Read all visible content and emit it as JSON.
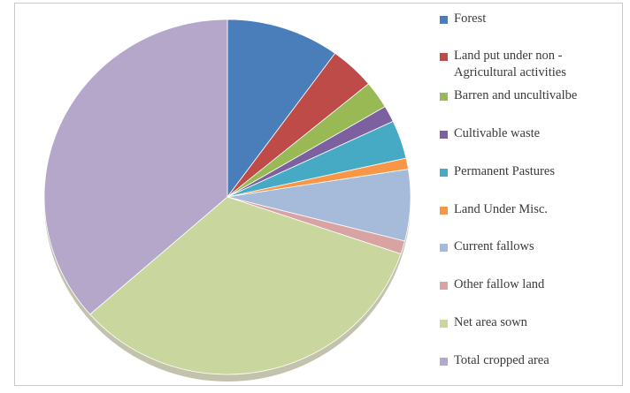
{
  "chart_data": {
    "type": "pie",
    "title": "",
    "legend_position": "right",
    "slices": [
      {
        "label": "Forest",
        "label_lines": [
          "Forest"
        ],
        "value": 10.0,
        "color": "#4a7ebb"
      },
      {
        "label": "Land put under non - Agricultural activities",
        "label_lines": [
          "Land put under non -",
          "Agricultural activities"
        ],
        "value": 4.0,
        "color": "#be4b48"
      },
      {
        "label": "Barren and uncultivalbe",
        "label_lines": [
          "Barren and uncultivalbe"
        ],
        "value": 2.5,
        "color": "#98b954"
      },
      {
        "label": "Cultivable waste",
        "label_lines": [
          "Cultivable waste"
        ],
        "value": 1.5,
        "color": "#7d60a0"
      },
      {
        "label": "Permanent Pastures",
        "label_lines": [
          "Permanent Pastures"
        ],
        "value": 3.5,
        "color": "#46aac4"
      },
      {
        "label": "Land Under Misc.",
        "label_lines": [
          "Land Under Misc."
        ],
        "value": 1.0,
        "color": "#f79646"
      },
      {
        "label": "Current fallows",
        "label_lines": [
          "Current fallows"
        ],
        "value": 6.5,
        "color": "#a5bbd9"
      },
      {
        "label": "Other fallow land",
        "label_lines": [
          "Other fallow land"
        ],
        "value": 1.2,
        "color": "#d9a3a3"
      },
      {
        "label": "Net area sown",
        "label_lines": [
          "Net area sown"
        ],
        "value": 33.3,
        "color": "#c9d69d"
      },
      {
        "label": "Total cropped area",
        "label_lines": [
          "Total cropped area"
        ],
        "value": 36.5,
        "color": "#b4a7c9"
      }
    ]
  }
}
